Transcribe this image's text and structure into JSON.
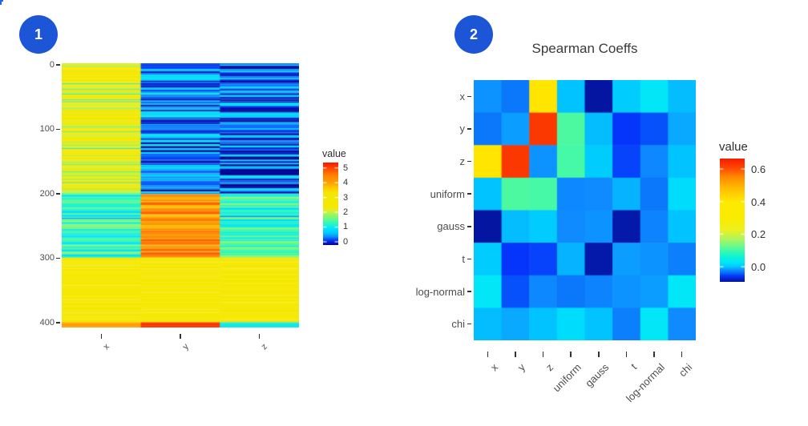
{
  "page": {
    "background": "#ffffff",
    "corner_mark_color": "#2563eb",
    "badge_color": "#1c55d6"
  },
  "figure1": {
    "badge": {
      "label": "1"
    },
    "legend": {
      "title": "value",
      "ticks": [
        "5",
        "4",
        "3",
        "2",
        "1",
        "0"
      ],
      "tick_values": [
        5,
        4,
        3,
        2,
        1,
        0
      ]
    },
    "y_axis": {
      "labels": [
        "0",
        "100",
        "200",
        "300",
        "400"
      ],
      "values": [
        0,
        100,
        200,
        300,
        400
      ]
    },
    "x_axis": {
      "labels": [
        "x",
        "y",
        "z"
      ]
    },
    "chart_data": {
      "type": "heatmap",
      "title": "",
      "columns": [
        "x",
        "y",
        "z"
      ],
      "row_count": 408,
      "row_axis_ticks": [
        0,
        100,
        200,
        300,
        400
      ],
      "value_domain": [
        -0.22,
        5.36
      ],
      "legend_label": "value",
      "colormap": [
        [
          0.0,
          "#00008F"
        ],
        [
          0.03,
          "#0516B4"
        ],
        [
          0.06,
          "#0535F5"
        ],
        [
          0.105,
          "#0F8CFF"
        ],
        [
          0.15,
          "#00C8FF"
        ],
        [
          0.2,
          "#00E1FF"
        ],
        [
          0.255,
          "#1EF5C8"
        ],
        [
          0.31,
          "#5AFA96"
        ],
        [
          0.37,
          "#9BF55F"
        ],
        [
          0.42,
          "#DCF02D"
        ],
        [
          0.465,
          "#F5E900"
        ],
        [
          0.63,
          "#F5E600"
        ],
        [
          0.7,
          "#FFC800"
        ],
        [
          0.76,
          "#FFA000"
        ],
        [
          0.85,
          "#FF8200"
        ],
        [
          0.92,
          "#FF5000"
        ],
        [
          0.97,
          "#FF2D00"
        ],
        [
          1.0,
          "#F51E00"
        ]
      ],
      "segments": [
        {
          "row_start": 0,
          "row_end": 202,
          "columns": {
            "x": {
              "base": [
                2.0,
                3.2
              ],
              "dip_prob": 0.18,
              "dip": [
                0.7,
                1.9
              ]
            },
            "y": {
              "base": [
                -0.2,
                1.1
              ]
            },
            "z": {
              "base": [
                -0.35,
                0.95
              ]
            }
          }
        },
        {
          "row_start": 202,
          "row_end": 300,
          "columns": {
            "x": {
              "base": [
                0.8,
                1.8
              ],
              "dip_prob": 0.05,
              "dip": [
                -0.15,
                0.4
              ]
            },
            "y": {
              "base": [
                3.6,
                4.9
              ],
              "dip_prob": 0.08,
              "dip": [
                5.0,
                5.3
              ]
            },
            "z": {
              "base": [
                0.8,
                1.8
              ],
              "dip_prob": 0.06,
              "dip": [
                0.1,
                0.6
              ]
            }
          }
        },
        {
          "row_start": 300,
          "row_end": 400,
          "columns": {
            "x": {
              "base": [
                2.42,
                2.72
              ],
              "dip_prob": 0.03,
              "dip": [
                3.3,
                3.9
              ]
            },
            "y": {
              "base": [
                2.48,
                2.68
              ]
            },
            "z": {
              "base": [
                2.45,
                2.7
              ]
            }
          }
        },
        {
          "row_start": 400,
          "row_end": 408,
          "columns": {
            "x": {
              "base": [
                4.0,
                4.2
              ]
            },
            "y": {
              "base": [
                5.0,
                5.2
              ]
            },
            "z": {
              "base": [
                0.9,
                1.1
              ]
            }
          }
        }
      ]
    }
  },
  "figure2": {
    "badge": {
      "label": "2"
    },
    "title": "Spearman Coeffs",
    "legend": {
      "title": "value",
      "ticks": [
        "0.6",
        "0.4",
        "0.2",
        "0.0"
      ],
      "tick_values": [
        0.6,
        0.4,
        0.2,
        0.0
      ]
    },
    "chart_data": {
      "type": "heatmap",
      "title": "Spearman Coeffs",
      "categories": [
        "x",
        "y",
        "z",
        "uniform",
        "gauss",
        "t",
        "log-normal",
        "chi"
      ],
      "value_domain": [
        -0.093,
        0.664
      ],
      "legend_label": "value",
      "colormap": [
        [
          0.0,
          "#041095"
        ],
        [
          0.05,
          "#0535FA"
        ],
        [
          0.08,
          "#0A73FA"
        ],
        [
          0.1,
          "#0F8CFF"
        ],
        [
          0.125,
          "#00C8FF"
        ],
        [
          0.16,
          "#00E6FA"
        ],
        [
          0.21,
          "#0FF5D2"
        ],
        [
          0.28,
          "#5AFA96"
        ],
        [
          0.35,
          "#AFF55F"
        ],
        [
          0.43,
          "#F0F01E"
        ],
        [
          0.52,
          "#F8EC00"
        ],
        [
          0.655,
          "#FFE900"
        ],
        [
          0.76,
          "#FFBE00"
        ],
        [
          0.85,
          "#FF8C00"
        ],
        [
          0.93,
          "#FF4600"
        ],
        [
          1.0,
          "#F51E00"
        ]
      ],
      "matrix": [
        [
          -0.015,
          -0.03,
          0.41,
          0.0,
          -0.088,
          0.005,
          0.03,
          -0.002
        ],
        [
          -0.03,
          -0.012,
          0.63,
          0.11,
          -0.002,
          -0.055,
          -0.045,
          -0.008
        ],
        [
          0.41,
          0.63,
          -0.015,
          0.105,
          0.005,
          -0.05,
          -0.02,
          0.0
        ],
        [
          0.0,
          0.11,
          0.105,
          -0.02,
          -0.018,
          -0.005,
          -0.03,
          0.02
        ],
        [
          -0.088,
          -0.002,
          0.005,
          -0.018,
          -0.015,
          -0.085,
          -0.022,
          0.0
        ],
        [
          0.005,
          -0.055,
          -0.05,
          -0.005,
          -0.085,
          -0.012,
          -0.015,
          -0.025
        ],
        [
          0.03,
          -0.045,
          -0.02,
          -0.03,
          -0.022,
          -0.015,
          -0.012,
          0.03
        ],
        [
          -0.002,
          -0.008,
          0.0,
          0.02,
          0.0,
          -0.025,
          0.03,
          -0.018
        ]
      ]
    }
  }
}
